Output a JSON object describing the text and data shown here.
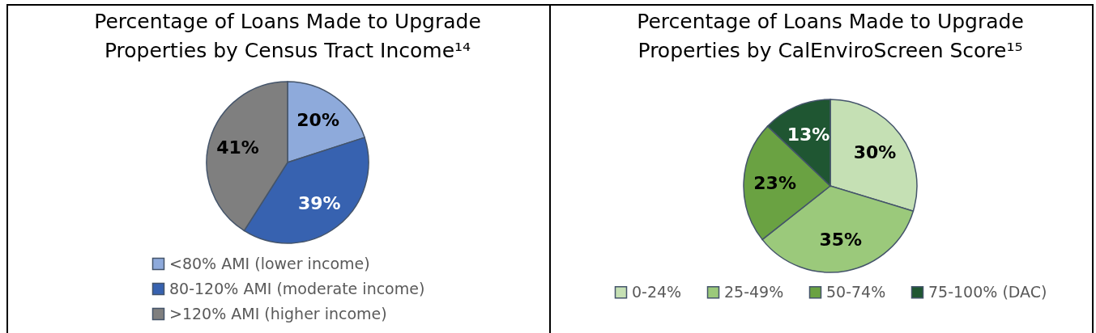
{
  "chart_data": [
    {
      "type": "pie",
      "title": "Percentage of Loans Made to Upgrade Properties by Census Tract Income¹⁴",
      "categories": [
        "<80% AMI (lower income)",
        "80-120% AMI (moderate income)",
        ">120% AMI (higher income)"
      ],
      "values": [
        20,
        39,
        41
      ],
      "value_labels": [
        "20%",
        "39%",
        "41%"
      ],
      "colors": [
        "#8eaadb",
        "#3762b0",
        "#7f7f7f"
      ],
      "legend": "bottom"
    },
    {
      "type": "pie",
      "title": "Percentage of Loans Made to Upgrade Properties by CalEnviroScreen Score¹⁵",
      "categories": [
        "0-24%",
        "25-49%",
        "50-74%",
        "75-100% (DAC)"
      ],
      "values": [
        30,
        35,
        23,
        13
      ],
      "value_labels": [
        "30%",
        "35%",
        "23%",
        "13%"
      ],
      "colors": [
        "#c5e0b4",
        "#9bc97b",
        "#6aa242",
        "#1f5632"
      ],
      "legend": "bottom"
    }
  ]
}
